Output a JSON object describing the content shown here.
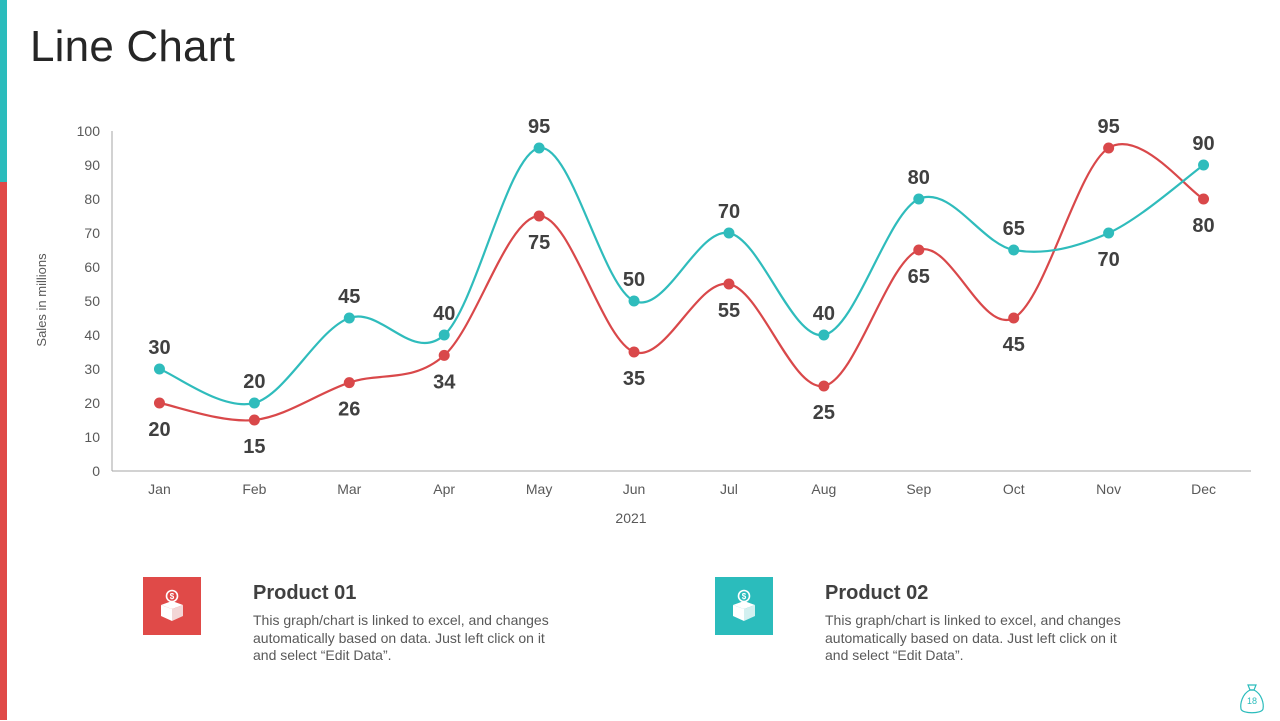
{
  "slide": {
    "title": "Line Chart",
    "page_number": "18",
    "accent_colors": {
      "teal": "#2bbcbc",
      "red": "#e04a48"
    }
  },
  "chart_data": {
    "type": "line",
    "title": "",
    "xlabel": "2021",
    "ylabel": "Sales in millions",
    "categories": [
      "Jan",
      "Feb",
      "Mar",
      "Apr",
      "May",
      "Jun",
      "Jul",
      "Aug",
      "Sep",
      "Oct",
      "Nov",
      "Dec"
    ],
    "ylim": [
      0,
      100
    ],
    "yticks": [
      0,
      10,
      20,
      30,
      40,
      50,
      60,
      70,
      80,
      90,
      100
    ],
    "grid": false,
    "smooth": true,
    "series": [
      {
        "name": "Product 01",
        "color": "#d9484a",
        "values": [
          20,
          15,
          26,
          34,
          75,
          35,
          55,
          25,
          65,
          45,
          95,
          80
        ]
      },
      {
        "name": "Product 02",
        "color": "#2fbcbc",
        "values": [
          30,
          20,
          45,
          40,
          95,
          50,
          70,
          40,
          80,
          65,
          70,
          90
        ]
      }
    ]
  },
  "legend": [
    {
      "title": "Product 01",
      "description": "This graph/chart is linked to excel, and changes automatically based on data. Just left click on it and select “Edit Data”.",
      "icon": "gift-box-dollar-icon",
      "color": "#e04a48"
    },
    {
      "title": "Product 02",
      "description": "This graph/chart is linked to excel, and changes automatically based on data. Just left click on it and select “Edit Data”.",
      "icon": "gift-box-dollar-icon",
      "color": "#2bbcbc"
    }
  ]
}
